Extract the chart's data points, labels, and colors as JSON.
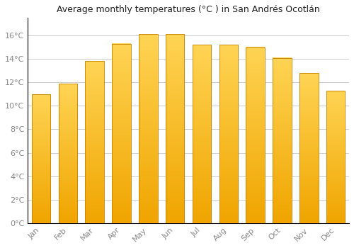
{
  "title": "Average monthly temperatures (°C ) in San Andrés Ocotlán",
  "months": [
    "Jan",
    "Feb",
    "Mar",
    "Apr",
    "May",
    "Jun",
    "Jul",
    "Aug",
    "Sep",
    "Oct",
    "Nov",
    "Dec"
  ],
  "values": [
    11.0,
    11.9,
    13.8,
    15.3,
    16.1,
    16.1,
    15.2,
    15.2,
    15.0,
    14.1,
    12.8,
    11.3
  ],
  "bar_color_top": "#FFD454",
  "bar_color_bottom": "#F0A500",
  "bar_edge_color": "#C88000",
  "background_color": "#FFFFFF",
  "grid_color": "#CCCCCC",
  "ylim": [
    0,
    17.5
  ],
  "yticks": [
    0,
    2,
    4,
    6,
    8,
    10,
    12,
    14,
    16
  ],
  "ytick_labels": [
    "0°C",
    "2°C",
    "4°C",
    "6°C",
    "8°C",
    "10°C",
    "12°C",
    "14°C",
    "16°C"
  ],
  "title_fontsize": 9,
  "tick_fontsize": 8,
  "tick_color": "#888888",
  "bar_width": 0.7
}
